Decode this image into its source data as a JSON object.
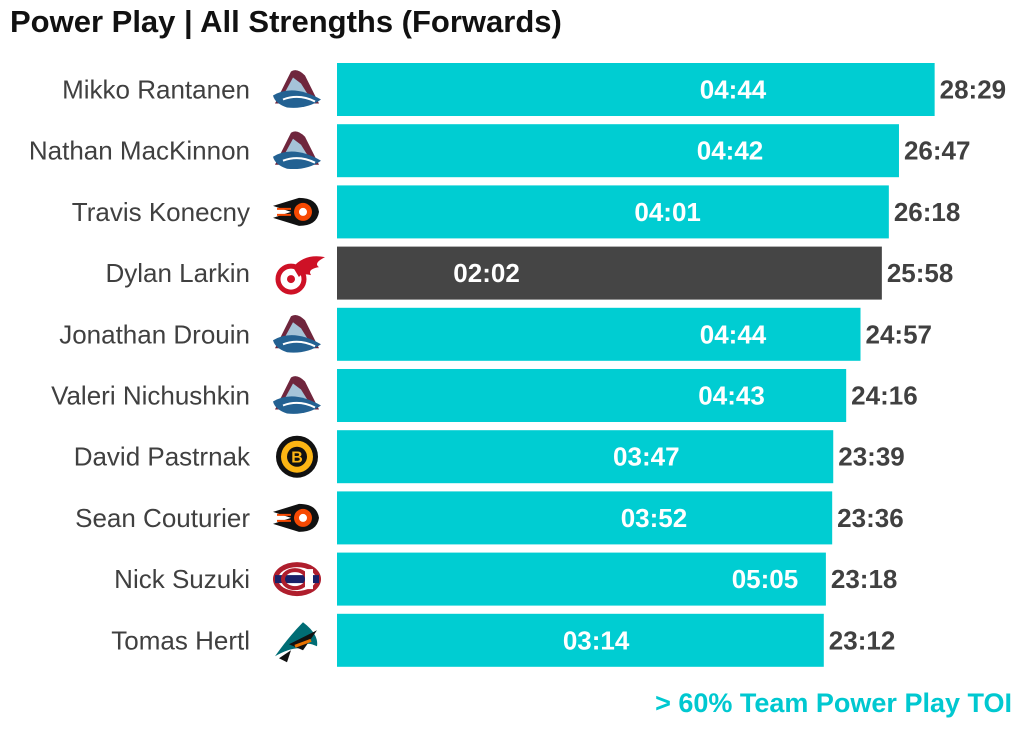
{
  "chart_data": {
    "type": "bar",
    "orientation": "horizontal",
    "title": "Power Play | All Strengths (Forwards)",
    "annotation": "> 60% Team Power Play TOI",
    "colors": {
      "highlight": "#00cdd2",
      "other": "#454545",
      "total_text": "#404040",
      "pp_text": "#ffffff",
      "annotation": "#00c8d0"
    },
    "xlim_minutes": [
      0,
      28.5
    ],
    "players": [
      {
        "name": "Mikko Rantanen",
        "team_logo": "avalanche-logo-icon",
        "total": "28:29",
        "total_min": 28.483,
        "pp": "04:44",
        "pp_min": 4.733,
        "highlight": true
      },
      {
        "name": "Nathan MacKinnon",
        "team_logo": "avalanche-logo-icon",
        "total": "26:47",
        "total_min": 26.783,
        "pp": "04:42",
        "pp_min": 4.7,
        "highlight": true
      },
      {
        "name": "Travis Konecny",
        "team_logo": "flyers-logo-icon",
        "total": "26:18",
        "total_min": 26.3,
        "pp": "04:01",
        "pp_min": 4.017,
        "highlight": true
      },
      {
        "name": "Dylan Larkin",
        "team_logo": "red-wings-logo-icon",
        "total": "25:58",
        "total_min": 25.967,
        "pp": "02:02",
        "pp_min": 2.033,
        "highlight": false
      },
      {
        "name": "Jonathan Drouin",
        "team_logo": "avalanche-logo-icon",
        "total": "24:57",
        "total_min": 24.95,
        "pp": "04:44",
        "pp_min": 4.733,
        "highlight": true
      },
      {
        "name": "Valeri Nichushkin",
        "team_logo": "avalanche-logo-icon",
        "total": "24:16",
        "total_min": 24.267,
        "pp": "04:43",
        "pp_min": 4.717,
        "highlight": true
      },
      {
        "name": "David Pastrnak",
        "team_logo": "bruins-logo-icon",
        "total": "23:39",
        "total_min": 23.65,
        "pp": "03:47",
        "pp_min": 3.783,
        "highlight": true
      },
      {
        "name": "Sean Couturier",
        "team_logo": "flyers-logo-icon",
        "total": "23:36",
        "total_min": 23.6,
        "pp": "03:52",
        "pp_min": 3.867,
        "highlight": true
      },
      {
        "name": "Nick Suzuki",
        "team_logo": "canadiens-logo-icon",
        "total": "23:18",
        "total_min": 23.3,
        "pp": "05:05",
        "pp_min": 5.083,
        "highlight": true
      },
      {
        "name": "Tomas Hertl",
        "team_logo": "sharks-logo-icon",
        "total": "23:12",
        "total_min": 23.2,
        "pp": "03:14",
        "pp_min": 3.233,
        "highlight": true
      }
    ]
  }
}
